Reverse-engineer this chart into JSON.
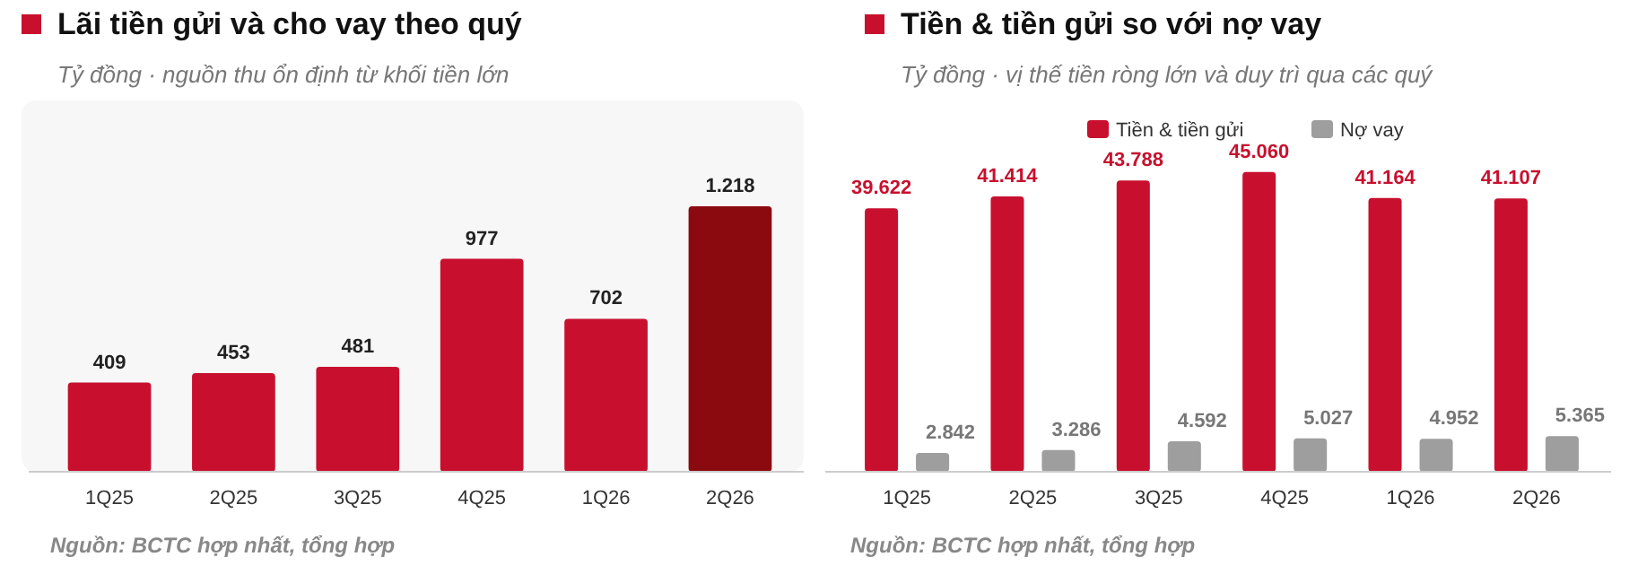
{
  "chart_data": [
    {
      "type": "bar",
      "title": "Lãi tiền gửi và cho vay theo quý",
      "subtitle": "Tỷ đồng · nguồn thu ổn định từ khối tiền lớn",
      "categories": [
        "1Q25",
        "2Q25",
        "3Q25",
        "4Q25",
        "1Q26",
        "2Q26"
      ],
      "values": [
        409,
        453,
        481,
        977,
        702,
        1218
      ],
      "colors": [
        "#c8102e",
        "#c8102e",
        "#c8102e",
        "#c8102e",
        "#c8102e",
        "#8b0a0f"
      ],
      "value_labels": [
        "409",
        "453",
        "481",
        "977",
        "702",
        "1.218"
      ],
      "legend": false,
      "grid": false,
      "annotations": [
        "Nguồn: BCTC hợp nhất, tổng hợp"
      ]
    },
    {
      "type": "bar",
      "title": "Tiền & tiền gửi so với nợ vay",
      "subtitle": "Tỷ đồng · vị thế tiền ròng lớn và duy trì qua các quý",
      "categories": [
        "1Q25",
        "2Q25",
        "3Q25",
        "4Q25",
        "1Q26",
        "2Q26"
      ],
      "legend": "top",
      "grid": false,
      "series": [
        {
          "name": "Tiền & tiền gửi",
          "color": "#c8102e",
          "values": [
            39622,
            41414,
            43788,
            45060,
            41164,
            41107
          ],
          "value_labels": [
            "39.622",
            "41.414",
            "43.788",
            "45.060",
            "41.164",
            "41.107"
          ]
        },
        {
          "name": "Nợ vay",
          "color": "#9e9e9e",
          "values": [
            2842,
            3286,
            4592,
            5027,
            4952,
            5365
          ],
          "value_labels": [
            "2.842",
            "3.286",
            "4.592",
            "5.027",
            "4.952",
            "5.365"
          ]
        }
      ],
      "annotations": [
        "Nguồn: BCTC hợp nhất, tổng hợp"
      ]
    }
  ]
}
